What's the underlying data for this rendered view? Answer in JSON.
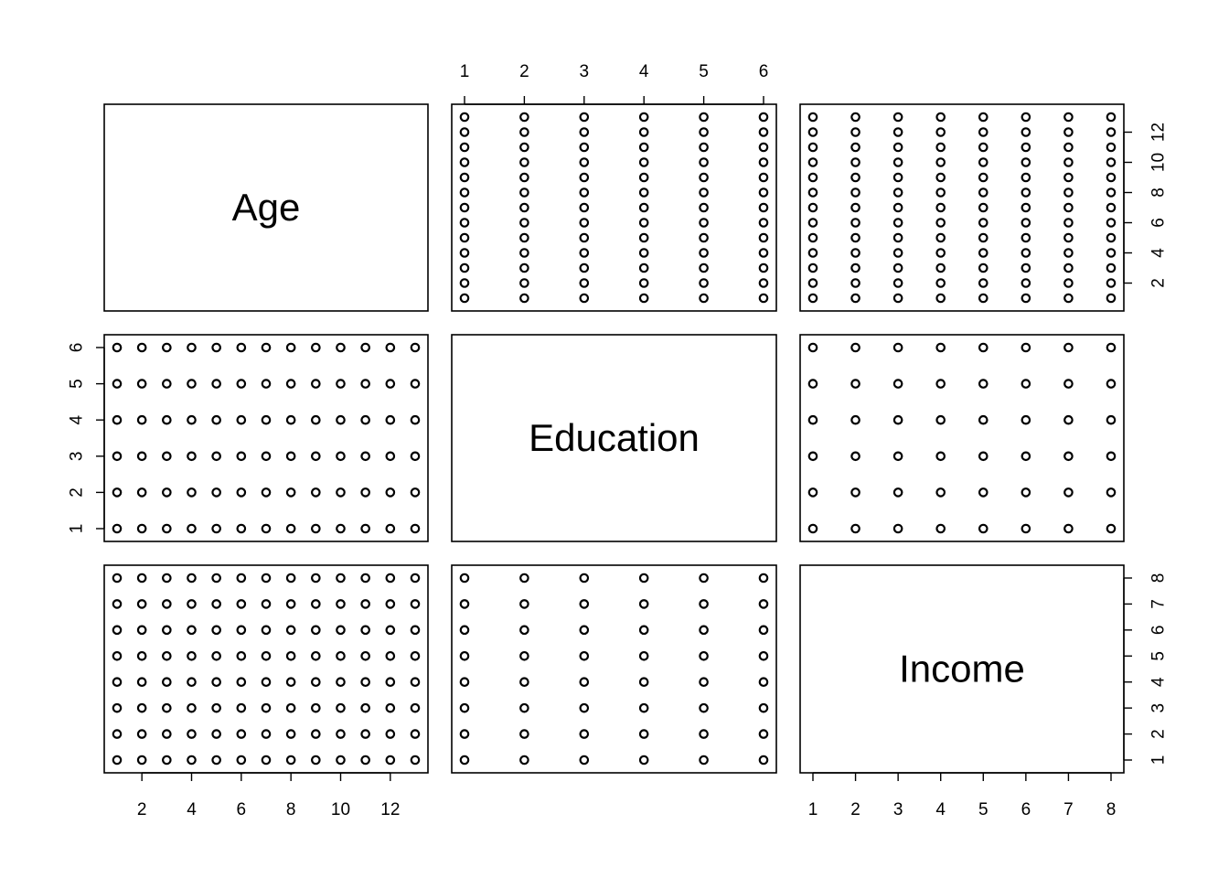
{
  "chart_data": {
    "type": "scatter",
    "kind": "pairs-matrix",
    "variables": [
      {
        "name": "Age",
        "range": [
          1,
          13
        ],
        "ticks": [
          2,
          4,
          6,
          8,
          10,
          12
        ],
        "levels": [
          1,
          2,
          3,
          4,
          5,
          6,
          7,
          8,
          9,
          10,
          11,
          12,
          13
        ]
      },
      {
        "name": "Education",
        "range": [
          1,
          6
        ],
        "ticks": [
          1,
          2,
          3,
          4,
          5,
          6
        ],
        "levels": [
          1,
          2,
          3,
          4,
          5,
          6
        ]
      },
      {
        "name": "Income",
        "range": [
          1,
          8
        ],
        "ticks": [
          1,
          2,
          3,
          4,
          5,
          6,
          7,
          8
        ],
        "levels": [
          1,
          2,
          3,
          4,
          5,
          6,
          7,
          8
        ]
      }
    ],
    "points": "all level combinations of each variable pair",
    "point_color": "#000000",
    "marker": "open-circle",
    "grid": false,
    "legend": "none",
    "tick_axes": [
      {
        "var": 1,
        "side": "top",
        "cell": [
          0,
          1
        ]
      },
      {
        "var": 0,
        "side": "right",
        "cell": [
          0,
          2
        ]
      },
      {
        "var": 1,
        "side": "left",
        "cell": [
          1,
          0
        ]
      },
      {
        "var": 2,
        "side": "right",
        "cell": [
          2,
          2
        ]
      },
      {
        "var": 0,
        "side": "bottom",
        "cell": [
          2,
          0
        ]
      },
      {
        "var": 2,
        "side": "bottom",
        "cell": [
          2,
          2
        ]
      }
    ]
  }
}
